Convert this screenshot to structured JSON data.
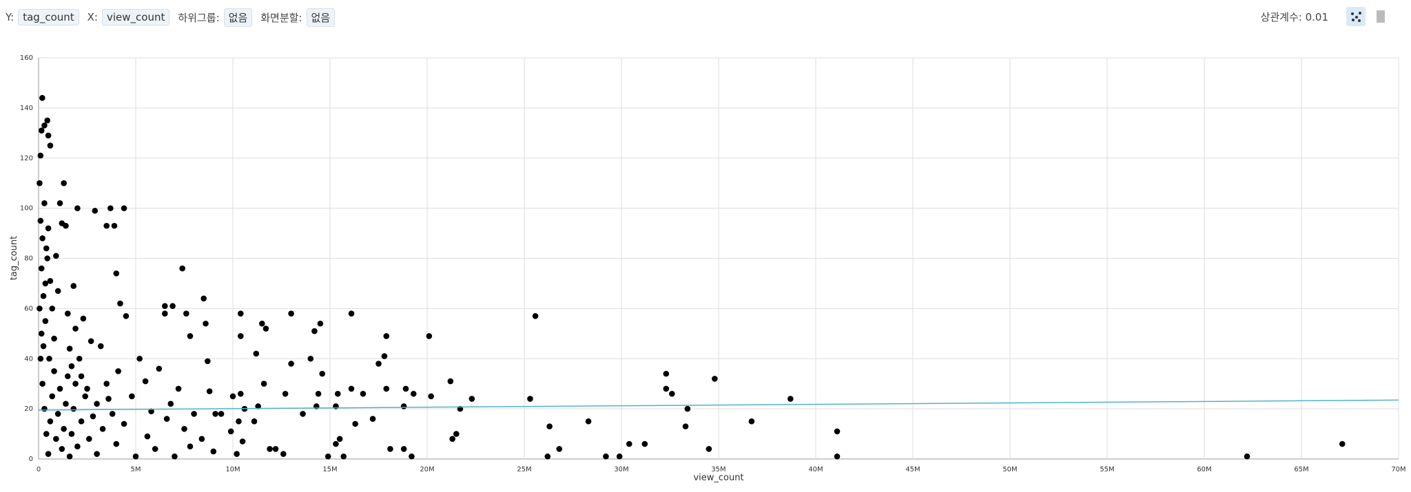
{
  "toolbar": {
    "y_label": "Y:",
    "y_field": "tag_count",
    "x_label": "X:",
    "x_field": "view_count",
    "subgroup_label": "하위그룹:",
    "subgroup_value": "없음",
    "split_label": "화면분할:",
    "split_value": "없음",
    "correlation": "상관계수: 0.01"
  },
  "chart_data": {
    "type": "scatter",
    "xlabel": "view_count",
    "ylabel": "tag_count",
    "grid": true,
    "xlim": [
      0,
      70000000
    ],
    "xticks": [
      {
        "value": 0,
        "label": "0"
      },
      {
        "value": 5000000,
        "label": "5M"
      },
      {
        "value": 10000000,
        "label": "10M"
      },
      {
        "value": 15000000,
        "label": "15M"
      },
      {
        "value": 20000000,
        "label": "20M"
      },
      {
        "value": 25000000,
        "label": "25M"
      },
      {
        "value": 30000000,
        "label": "30M"
      },
      {
        "value": 35000000,
        "label": "35M"
      },
      {
        "value": 40000000,
        "label": "40M"
      },
      {
        "value": 45000000,
        "label": "45M"
      },
      {
        "value": 50000000,
        "label": "50M"
      },
      {
        "value": 55000000,
        "label": "55M"
      },
      {
        "value": 60000000,
        "label": "60M"
      },
      {
        "value": 65000000,
        "label": "65M"
      },
      {
        "value": 70000000,
        "label": "70M"
      }
    ],
    "ylim": [
      0,
      160
    ],
    "yticks": [
      0,
      20,
      40,
      60,
      80,
      100,
      120,
      140,
      160
    ],
    "series": [
      {
        "color": "#000000",
        "x": [
          190000,
          25570000,
          67100000,
          62200000,
          41100000,
          41100000,
          38700000,
          36700000,
          34800000,
          34500000,
          33400000,
          33300000,
          32300000,
          32300000,
          32600000,
          31200000,
          30400000,
          29200000,
          29900000,
          28300000,
          26800000,
          26200000,
          26300000,
          25300000,
          22300000,
          21700000,
          21500000,
          21300000,
          21200000,
          20200000,
          20100000,
          19300000,
          18900000,
          18800000,
          19200000,
          18800000,
          18100000,
          17900000,
          17800000,
          17900000,
          17500000,
          17200000,
          16700000,
          16300000,
          16100000,
          16100000,
          15700000,
          15500000,
          15300000,
          15400000,
          15300000,
          14900000,
          14500000,
          14400000,
          14300000,
          14600000,
          14200000,
          14000000,
          13600000,
          13000000,
          13000000,
          12700000,
          12600000,
          12200000,
          11900000,
          11700000,
          11600000,
          11500000,
          11200000,
          11300000,
          11100000,
          10400000,
          10400000,
          10400000,
          10600000,
          10300000,
          10000000,
          9900000,
          10200000,
          10500000,
          9100000,
          8700000,
          8600000,
          8500000,
          7400000,
          7800000,
          7600000,
          6900000,
          6500000,
          6500000,
          4400000,
          3900000,
          3700000,
          4000000,
          2900000,
          3500000,
          4200000,
          100000,
          300000,
          450000,
          500000,
          600000,
          150000,
          50000,
          100000,
          200000,
          300000,
          150000,
          400000,
          250000,
          500000,
          600000,
          350000,
          700000,
          800000,
          900000,
          1000000,
          1100000,
          1200000,
          1300000,
          1400000,
          1500000,
          1600000,
          1700000,
          1800000,
          1900000,
          2000000,
          2100000,
          2200000,
          2300000,
          2500000,
          2700000,
          3000000,
          3200000,
          3500000,
          3800000,
          4100000,
          4500000,
          4800000,
          5200000,
          5500000,
          5800000,
          6200000,
          6800000,
          7200000,
          7500000,
          8000000,
          8800000,
          9400000,
          100000,
          200000,
          300000,
          400000,
          500000,
          600000,
          700000,
          800000,
          900000,
          1000000,
          1100000,
          1200000,
          1300000,
          1400000,
          1500000,
          1600000,
          1700000,
          1800000,
          1900000,
          2000000,
          2200000,
          2400000,
          2600000,
          2800000,
          3000000,
          3300000,
          3600000,
          4000000,
          4400000,
          5000000,
          5600000,
          6000000,
          6600000,
          7000000,
          7800000,
          8400000,
          9000000,
          50000,
          150000,
          250000,
          350000,
          450000,
          550000
        ],
        "values": [
          144,
          57,
          6,
          1,
          11,
          1,
          24,
          15,
          32,
          4,
          20,
          13,
          34,
          28,
          26,
          6,
          6,
          1,
          1,
          15,
          4,
          1,
          13,
          24,
          24,
          20,
          10,
          8,
          31,
          25,
          49,
          26,
          28,
          4,
          1,
          21,
          4,
          49,
          41,
          28,
          38,
          16,
          26,
          14,
          58,
          28,
          1,
          8,
          6,
          26,
          21,
          1,
          54,
          26,
          21,
          34,
          51,
          40,
          18,
          58,
          38,
          26,
          2,
          4,
          4,
          52,
          30,
          54,
          42,
          21,
          15,
          58,
          49,
          26,
          20,
          15,
          25,
          11,
          2,
          7,
          18,
          39,
          54,
          64,
          76,
          49,
          58,
          61,
          61,
          58,
          100,
          93,
          100,
          74,
          99,
          93,
          62,
          121,
          133,
          135,
          129,
          125,
          131,
          110,
          95,
          88,
          102,
          76,
          84,
          65,
          92,
          71,
          55,
          60,
          48,
          81,
          67,
          102,
          94,
          110,
          93,
          58,
          44,
          37,
          69,
          52,
          100,
          40,
          33,
          56,
          28,
          47,
          22,
          45,
          30,
          18,
          35,
          57,
          25,
          40,
          31,
          19,
          36,
          22,
          28,
          12,
          18,
          27,
          18,
          40,
          30,
          20,
          10,
          2,
          15,
          25,
          35,
          8,
          18,
          28,
          4,
          12,
          22,
          33,
          1,
          10,
          20,
          30,
          5,
          15,
          25,
          8,
          17,
          2,
          12,
          24,
          6,
          14,
          1,
          9,
          4,
          16,
          1,
          5,
          8,
          3,
          60,
          50,
          45,
          70,
          80,
          40
        ]
      }
    ],
    "trendline": {
      "color": "#4fb3c8",
      "x": [
        0,
        70000000
      ],
      "values": [
        19.5,
        23.5
      ]
    }
  }
}
